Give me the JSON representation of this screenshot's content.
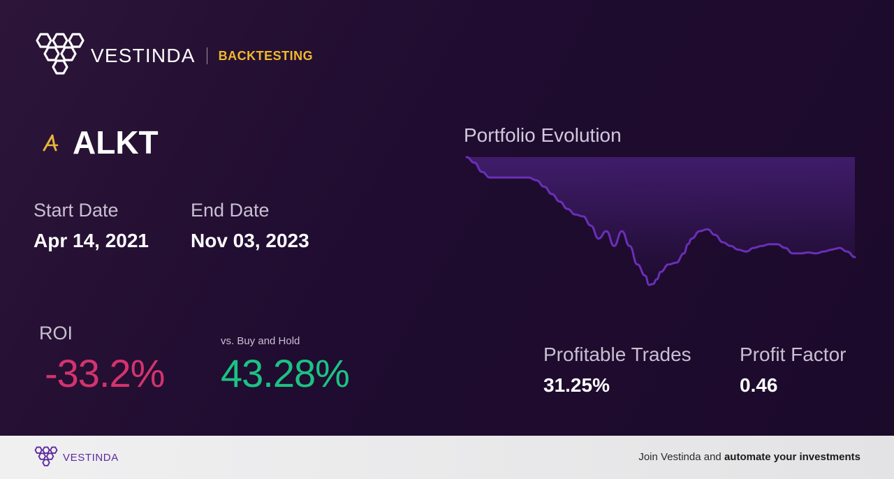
{
  "brand": {
    "name": "VESTINDA",
    "tagline": "BACKTESTING",
    "logo_icon": "hexagon-cluster-logo-icon",
    "tagline_color": "#f1b92a"
  },
  "ticker": {
    "symbol": "ALKT",
    "icon": "alkami-a-icon"
  },
  "dates": {
    "start_label": "Start Date",
    "start_value": "Apr 14, 2021",
    "end_label": "End Date",
    "end_value": "Nov 03, 2023"
  },
  "performance": {
    "roi_label": "ROI",
    "roi_value": "-33.2%",
    "roi_color": "#d4336e",
    "buy_hold_label": "vs. Buy and Hold",
    "buy_hold_value": "43.28%",
    "buy_hold_color": "#1cc283"
  },
  "chart": {
    "title": "Portfolio Evolution",
    "line_color": "#6a2fb8"
  },
  "chart_data": {
    "type": "area",
    "title": "Portfolio Evolution",
    "xlabel": "",
    "ylabel": "",
    "grid": false,
    "x": [
      0,
      2,
      4,
      6,
      8,
      10,
      12,
      14,
      16,
      18,
      20,
      22,
      24,
      26,
      28,
      30,
      32,
      34,
      36,
      38,
      40,
      42,
      44,
      46,
      47,
      48,
      49,
      50,
      52,
      54,
      56,
      57,
      58,
      60,
      62,
      64,
      66,
      68,
      70,
      72,
      74,
      76,
      78,
      80,
      82,
      84,
      86,
      88,
      90,
      92,
      94,
      95,
      96,
      98,
      100
    ],
    "values": [
      100,
      97,
      92,
      89,
      89,
      89,
      89,
      89,
      89,
      87.5,
      84,
      80,
      76,
      72,
      69,
      68,
      63,
      56,
      60,
      52,
      60,
      52,
      42,
      36,
      31,
      31.5,
      34,
      38,
      42,
      43,
      48,
      53,
      56,
      60,
      61,
      58,
      54,
      52,
      50,
      49,
      51,
      52,
      53,
      53,
      51,
      48,
      48,
      48.5,
      48,
      49,
      50,
      50.5,
      51,
      49,
      46
    ]
  },
  "stats": {
    "profitable_label": "Profitable Trades",
    "profitable_value": "31.25%",
    "profit_factor_label": "Profit Factor",
    "profit_factor_value": "0.46"
  },
  "footer": {
    "brand_name": "VESTINDA",
    "cta_prefix": "Join Vestinda and ",
    "cta_bold": "automate your investments"
  }
}
